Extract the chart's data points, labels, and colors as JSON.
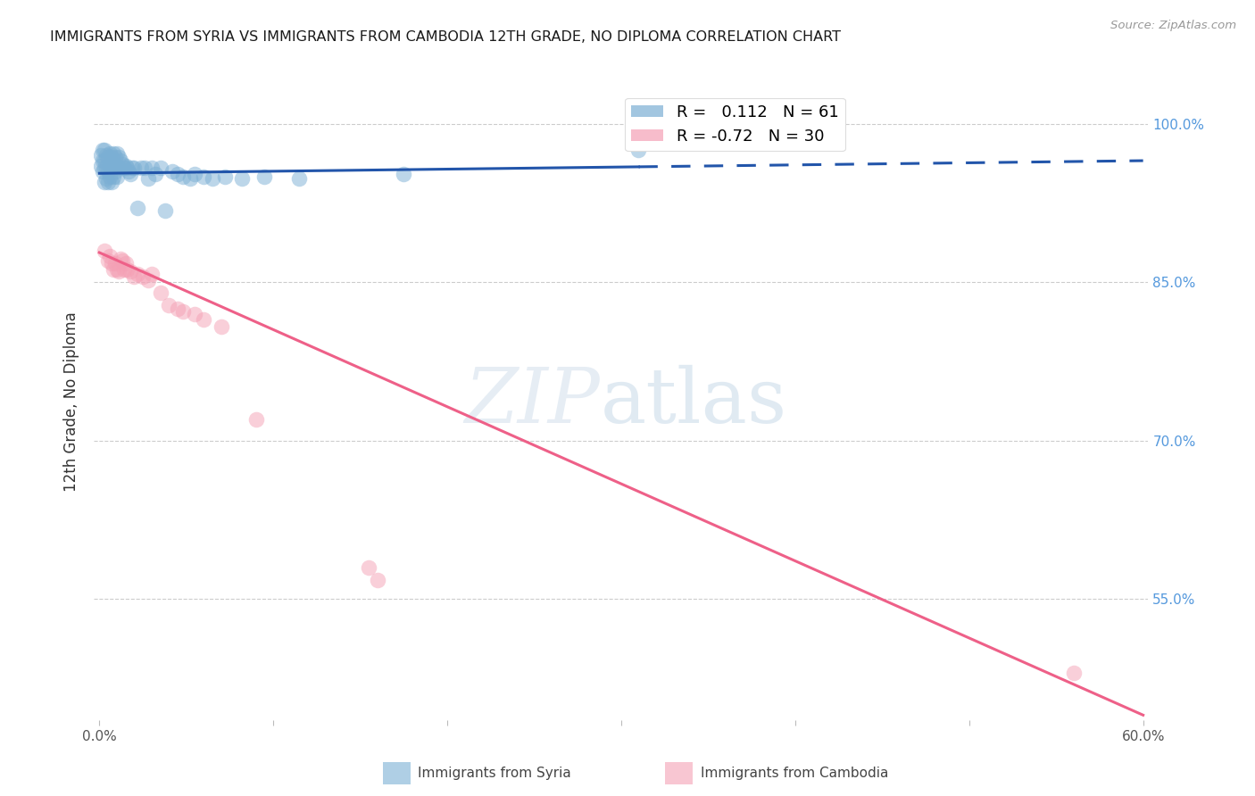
{
  "title": "IMMIGRANTS FROM SYRIA VS IMMIGRANTS FROM CAMBODIA 12TH GRADE, NO DIPLOMA CORRELATION CHART",
  "source": "Source: ZipAtlas.com",
  "ylabel": "12th Grade, No Diploma",
  "xmin": -0.003,
  "xmax": 0.603,
  "ymin": 0.435,
  "ymax": 1.038,
  "yticks": [
    0.55,
    0.7,
    0.85,
    1.0
  ],
  "ytick_labels": [
    "55.0%",
    "70.0%",
    "85.0%",
    "100.0%"
  ],
  "xticks": [
    0.0,
    0.1,
    0.2,
    0.3,
    0.4,
    0.5,
    0.6
  ],
  "xtick_labels": [
    "0.0%",
    "",
    "",
    "",
    "",
    "",
    "60.0%"
  ],
  "syria_R": 0.112,
  "syria_N": 61,
  "cambodia_R": -0.72,
  "cambodia_N": 30,
  "syria_color": "#7BAFD4",
  "cambodia_color": "#F4A0B5",
  "syria_line_color": "#2255AA",
  "cambodia_line_color": "#EE6088",
  "background_color": "#FFFFFF",
  "syria_x": [
    0.001,
    0.001,
    0.002,
    0.002,
    0.002,
    0.003,
    0.003,
    0.003,
    0.003,
    0.004,
    0.004,
    0.004,
    0.005,
    0.005,
    0.005,
    0.006,
    0.006,
    0.006,
    0.007,
    0.007,
    0.007,
    0.008,
    0.008,
    0.008,
    0.009,
    0.009,
    0.01,
    0.01,
    0.01,
    0.011,
    0.011,
    0.012,
    0.013,
    0.014,
    0.015,
    0.016,
    0.017,
    0.018,
    0.019,
    0.02,
    0.022,
    0.024,
    0.026,
    0.028,
    0.03,
    0.032,
    0.035,
    0.038,
    0.042,
    0.045,
    0.048,
    0.052,
    0.055,
    0.06,
    0.065,
    0.072,
    0.082,
    0.095,
    0.115,
    0.175,
    0.31
  ],
  "syria_y": [
    0.97,
    0.96,
    0.975,
    0.965,
    0.955,
    0.975,
    0.965,
    0.958,
    0.945,
    0.97,
    0.958,
    0.948,
    0.968,
    0.955,
    0.945,
    0.972,
    0.96,
    0.95,
    0.968,
    0.958,
    0.945,
    0.972,
    0.962,
    0.95,
    0.968,
    0.955,
    0.972,
    0.96,
    0.95,
    0.968,
    0.958,
    0.965,
    0.962,
    0.958,
    0.96,
    0.958,
    0.955,
    0.952,
    0.958,
    0.958,
    0.92,
    0.958,
    0.958,
    0.948,
    0.958,
    0.952,
    0.958,
    0.918,
    0.955,
    0.952,
    0.95,
    0.948,
    0.952,
    0.95,
    0.948,
    0.95,
    0.948,
    0.95,
    0.948,
    0.952,
    0.975
  ],
  "cambodia_x": [
    0.003,
    0.005,
    0.006,
    0.007,
    0.008,
    0.009,
    0.01,
    0.011,
    0.012,
    0.013,
    0.014,
    0.015,
    0.016,
    0.018,
    0.02,
    0.022,
    0.025,
    0.028,
    0.03,
    0.035,
    0.04,
    0.045,
    0.048,
    0.055,
    0.06,
    0.07,
    0.09,
    0.155,
    0.16,
    0.56
  ],
  "cambodia_y": [
    0.88,
    0.87,
    0.875,
    0.868,
    0.862,
    0.868,
    0.862,
    0.86,
    0.872,
    0.87,
    0.862,
    0.868,
    0.862,
    0.86,
    0.855,
    0.858,
    0.855,
    0.852,
    0.858,
    0.84,
    0.828,
    0.825,
    0.822,
    0.82,
    0.815,
    0.808,
    0.72,
    0.58,
    0.568,
    0.48
  ],
  "syria_trend_x0": 0.0,
  "syria_trend_x1": 0.6,
  "syria_trend_y0": 0.953,
  "syria_trend_y1": 0.965,
  "syria_trend_solid_x1": 0.31,
  "cambodia_trend_x0": 0.0,
  "cambodia_trend_x1": 0.6,
  "cambodia_trend_y0": 0.878,
  "cambodia_trend_y1": 0.44
}
